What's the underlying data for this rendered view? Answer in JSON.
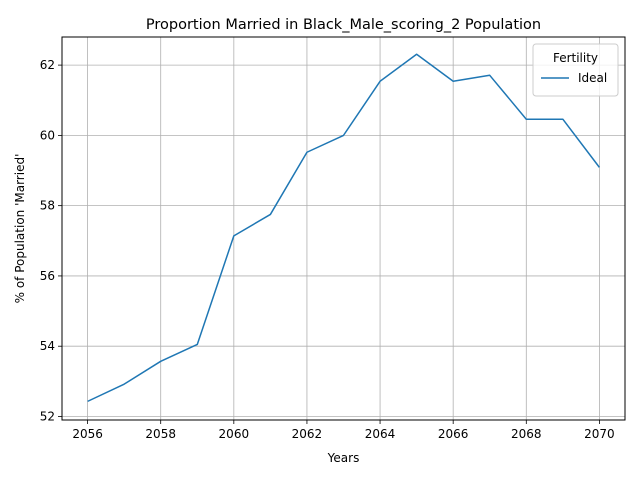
{
  "chart_data": {
    "type": "line",
    "title": "Proportion Married in Black_Male_scoring_2 Population",
    "xlabel": "Years",
    "ylabel": "% of Population 'Married'",
    "x": [
      2056,
      2057,
      2058,
      2059,
      2060,
      2061,
      2062,
      2063,
      2064,
      2065,
      2066,
      2067,
      2068,
      2069,
      2070
    ],
    "series": [
      {
        "name": "Ideal",
        "color": "#1f77b4",
        "values": [
          52.43,
          52.92,
          53.57,
          54.05,
          57.14,
          57.75,
          59.52,
          60.0,
          61.54,
          62.31,
          61.54,
          61.71,
          60.46,
          60.46,
          59.09
        ]
      }
    ],
    "xlim": [
      2055.3,
      2070.7
    ],
    "ylim": [
      51.9,
      62.8
    ],
    "xticks": [
      2056,
      2058,
      2060,
      2062,
      2064,
      2066,
      2068,
      2070
    ],
    "yticks": [
      52,
      54,
      56,
      58,
      60,
      62
    ],
    "grid": true,
    "legend": {
      "title": "Fertility",
      "placement": "top-right"
    }
  }
}
